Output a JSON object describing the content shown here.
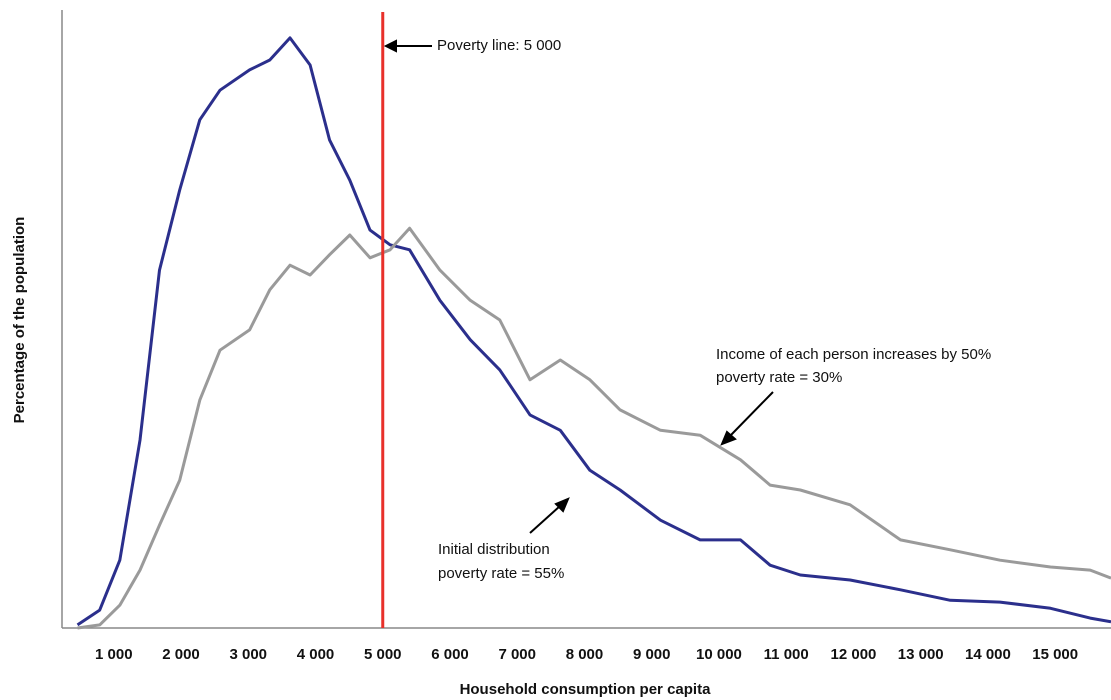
{
  "chart_data": {
    "type": "line",
    "x_label": "Household consumption per capita",
    "y_label": "Percentage of the population",
    "xlim": [
      230,
      15830
    ],
    "ylim": [
      0,
      100
    ],
    "xticks": [
      {
        "value": 1000,
        "label": "1 000"
      },
      {
        "value": 2000,
        "label": "2 000"
      },
      {
        "value": 3000,
        "label": "3 000"
      },
      {
        "value": 4000,
        "label": "4 000"
      },
      {
        "value": 5000,
        "label": "5 000"
      },
      {
        "value": 6000,
        "label": "6 000"
      },
      {
        "value": 7000,
        "label": "7 000"
      },
      {
        "value": 8000,
        "label": "8 000"
      },
      {
        "value": 9000,
        "label": "9 000"
      },
      {
        "value": 10000,
        "label": "10 000"
      },
      {
        "value": 11000,
        "label": "11 000"
      },
      {
        "value": 12000,
        "label": "12 000"
      },
      {
        "value": 13000,
        "label": "13 000"
      },
      {
        "value": 14000,
        "label": "14 000"
      },
      {
        "value": 15000,
        "label": "15 000"
      }
    ],
    "x": [
      460,
      790,
      1090,
      1390,
      1680,
      1980,
      2280,
      2580,
      3020,
      3320,
      3620,
      3920,
      4210,
      4510,
      4810,
      5110,
      5400,
      5850,
      6300,
      6740,
      7190,
      7640,
      8080,
      8530,
      9130,
      9720,
      10320,
      10760,
      11210,
      11950,
      12700,
      13440,
      14180,
      14930,
      15520,
      15830
    ],
    "series": [
      {
        "color": "#2b2f8c",
        "values": [
          0.5,
          2.9,
          11.0,
          30.5,
          58.1,
          71.1,
          82.5,
          87.3,
          90.6,
          92.2,
          95.8,
          91.4,
          79.2,
          72.7,
          64.6,
          62.2,
          61.4,
          53.2,
          46.8,
          41.9,
          34.6,
          32.1,
          25.6,
          22.4,
          17.5,
          14.3,
          14.3,
          10.2,
          8.6,
          7.8,
          6.2,
          4.5,
          4.2,
          3.2,
          1.6,
          1.0
        ]
      },
      {
        "color": "#9a9a9a",
        "values": [
          0,
          0.5,
          3.7,
          9.4,
          16.7,
          24.0,
          37.0,
          45.1,
          48.4,
          54.9,
          58.9,
          57.3,
          60.6,
          63.8,
          60.1,
          61.4,
          64.9,
          58.1,
          53.2,
          50.0,
          40.3,
          43.5,
          40.3,
          35.4,
          32.1,
          31.3,
          27.3,
          23.2,
          22.4,
          20.0,
          14.3,
          12.7,
          11.0,
          9.9,
          9.4,
          8.1
        ]
      }
    ],
    "poverty_line": {
      "value": 5000,
      "color": "#e8302a",
      "label": "Poverty line: 5 000"
    },
    "annotations": [
      {
        "lines": [
          "Income of each person increases by 50%",
          "poverty rate = 30%"
        ]
      },
      {
        "lines": [
          "Initial distribution",
          "poverty rate = 55%"
        ]
      }
    ]
  }
}
